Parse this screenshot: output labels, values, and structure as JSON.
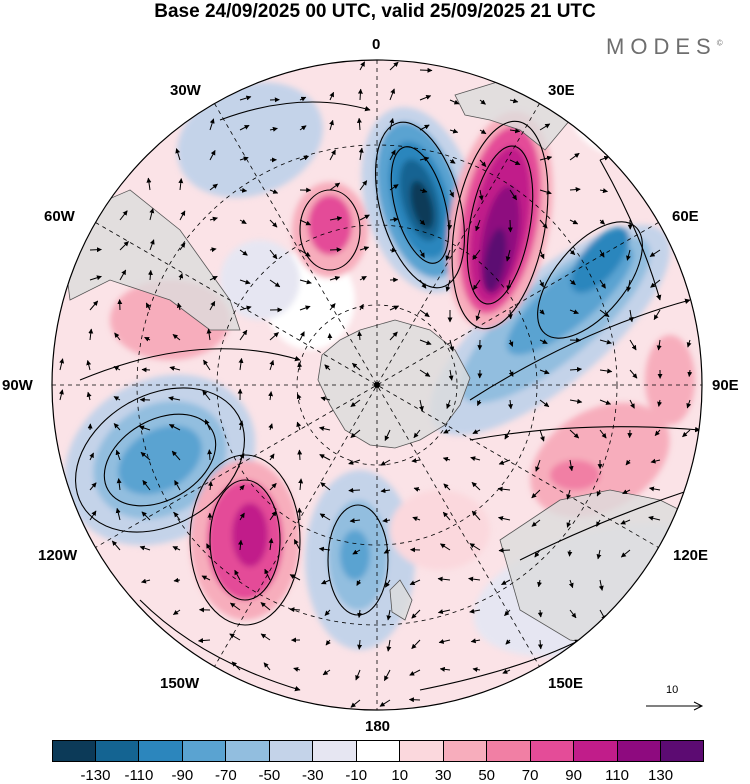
{
  "title": "Base 24/09/2025 00 UTC, valid 25/09/2025 21 UTC",
  "brand": "MODES",
  "brand_mark": "©",
  "meridian_labels": {
    "top": "0",
    "deg30e": "30E",
    "deg60e": "60E",
    "deg90e": "90E",
    "deg120e": "120E",
    "deg150e": "150E",
    "bottom": "180",
    "deg150w": "150W",
    "deg120w": "120W",
    "deg90w": "90W",
    "deg60w": "60W",
    "deg30w": "30W"
  },
  "reference_vector": "10",
  "legend": {
    "colors": [
      "#0c3a58",
      "#146492",
      "#2c86bd",
      "#5aa3d1",
      "#92bedf",
      "#c4d3e9",
      "#e6e6f2",
      "#ffffff",
      "#fbd8dd",
      "#f7adbc",
      "#f17fa4",
      "#e44c98",
      "#c11d8a",
      "#8e0a7f",
      "#5c0b72"
    ],
    "labels": [
      "-130",
      "-110",
      "-90",
      "-70",
      "-50",
      "-30",
      "-10",
      "10",
      "30",
      "50",
      "70",
      "90",
      "110",
      "130"
    ]
  }
}
